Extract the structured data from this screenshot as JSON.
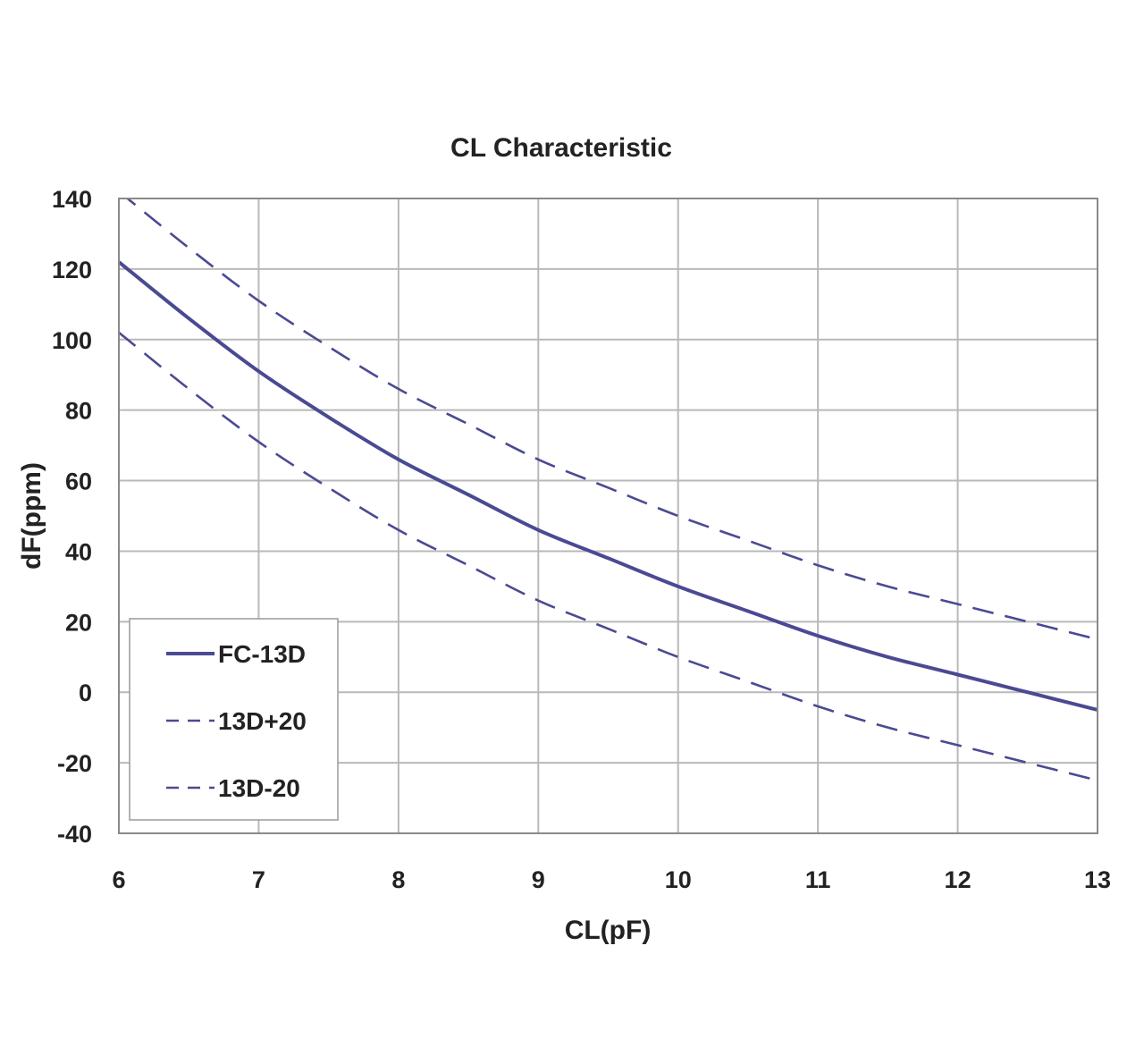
{
  "chart_data": {
    "type": "line",
    "title": "CL Characteristic",
    "xlabel": "CL(pF)",
    "ylabel": "dF(ppm)",
    "xlim": [
      6,
      13
    ],
    "ylim": [
      -40,
      140
    ],
    "x_ticks": [
      6,
      7,
      8,
      9,
      10,
      11,
      12,
      13
    ],
    "y_ticks": [
      -40,
      -20,
      0,
      20,
      40,
      60,
      80,
      100,
      120,
      140
    ],
    "grid": true,
    "legend_position": "bottom-left",
    "line_color": "#4a4a93",
    "series": [
      {
        "name": "FC-13D",
        "style": "solid",
        "x": [
          6,
          6.5,
          7,
          7.5,
          8,
          8.5,
          9,
          9.5,
          10,
          10.5,
          11,
          11.5,
          12,
          12.5,
          13
        ],
        "values": [
          122,
          106,
          91,
          78,
          66,
          56,
          46,
          38,
          30,
          23,
          16,
          10,
          5,
          0,
          -5
        ]
      },
      {
        "name": "13D+20",
        "style": "dashed",
        "x": [
          6,
          6.5,
          7,
          7.5,
          8,
          8.5,
          9,
          9.5,
          10,
          10.5,
          11,
          11.5,
          12,
          12.5,
          13
        ],
        "values": [
          142,
          126,
          111,
          98,
          86,
          76,
          66,
          58,
          50,
          43,
          36,
          30,
          25,
          20,
          15
        ]
      },
      {
        "name": "13D-20",
        "style": "dashed",
        "x": [
          6,
          6.5,
          7,
          7.5,
          8,
          8.5,
          9,
          9.5,
          10,
          10.5,
          11,
          11.5,
          12,
          12.5,
          13
        ],
        "values": [
          102,
          86,
          71,
          58,
          46,
          36,
          26,
          18,
          10,
          3,
          -4,
          -10,
          -15,
          -20,
          -25
        ]
      }
    ]
  }
}
